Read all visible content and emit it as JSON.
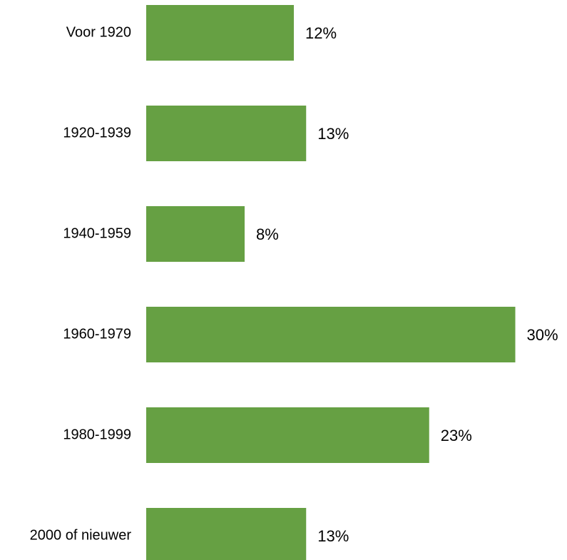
{
  "chart_data": {
    "type": "bar",
    "orientation": "horizontal",
    "categories": [
      "Voor 1920",
      "1920-1939",
      "1940-1959",
      "1960-1979",
      "1980-1999",
      "2000 of nieuwer"
    ],
    "values": [
      12,
      13,
      8,
      30,
      23,
      13
    ],
    "value_labels": [
      "12%",
      "13%",
      "8%",
      "30%",
      "23%",
      "13%"
    ],
    "unit": "%",
    "title": "",
    "xlabel": "",
    "ylabel": "",
    "xlim": [
      0,
      30
    ],
    "grid": false,
    "legend": "none",
    "bar_color": "#66a043"
  }
}
